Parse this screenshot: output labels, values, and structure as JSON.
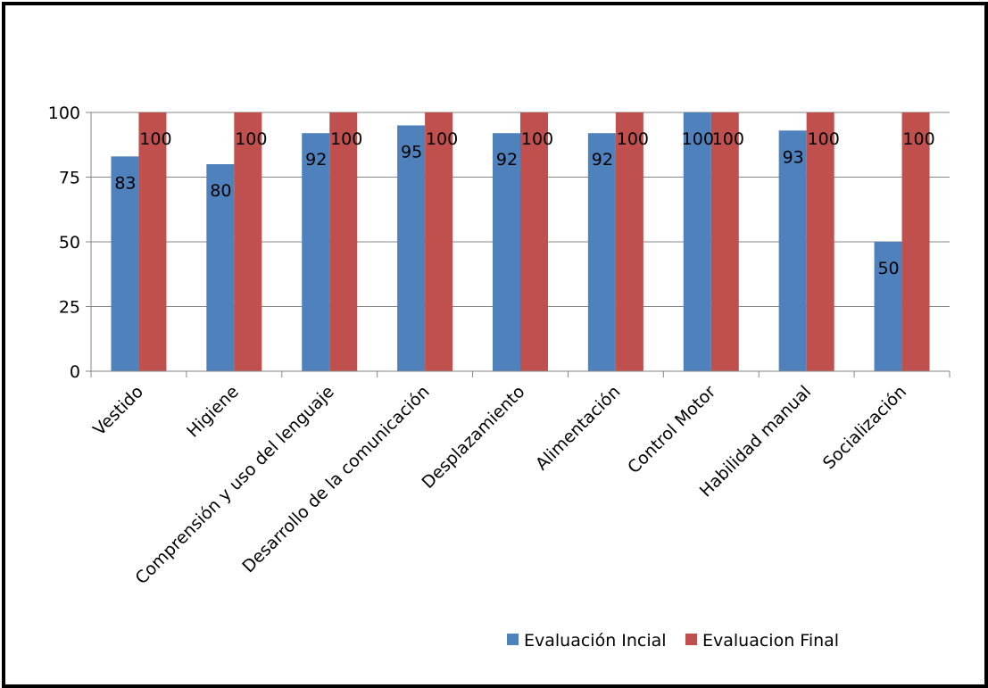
{
  "chart_data": {
    "type": "bar",
    "categories": [
      "Vestido",
      "Higiene",
      "Comprensión y uso del lenguaje",
      "Desarrollo de la comunicación",
      "Desplazamiento",
      "Alimentación",
      "Control Motor",
      "Habilidad manual",
      "Socialización"
    ],
    "series": [
      {
        "name": "Evaluación Incial",
        "color": "#4F81BD",
        "values": [
          83,
          80,
          92,
          95,
          92,
          92,
          100,
          93,
          50
        ]
      },
      {
        "name": "Evaluacion Final",
        "color": "#C0504D",
        "values": [
          100,
          100,
          100,
          100,
          100,
          100,
          100,
          100,
          100
        ]
      }
    ],
    "y_ticks": [
      0,
      25,
      50,
      75,
      100
    ],
    "ylim": [
      0,
      100
    ],
    "grid": true,
    "data_labels": true,
    "legend_position": "bottom-right"
  }
}
